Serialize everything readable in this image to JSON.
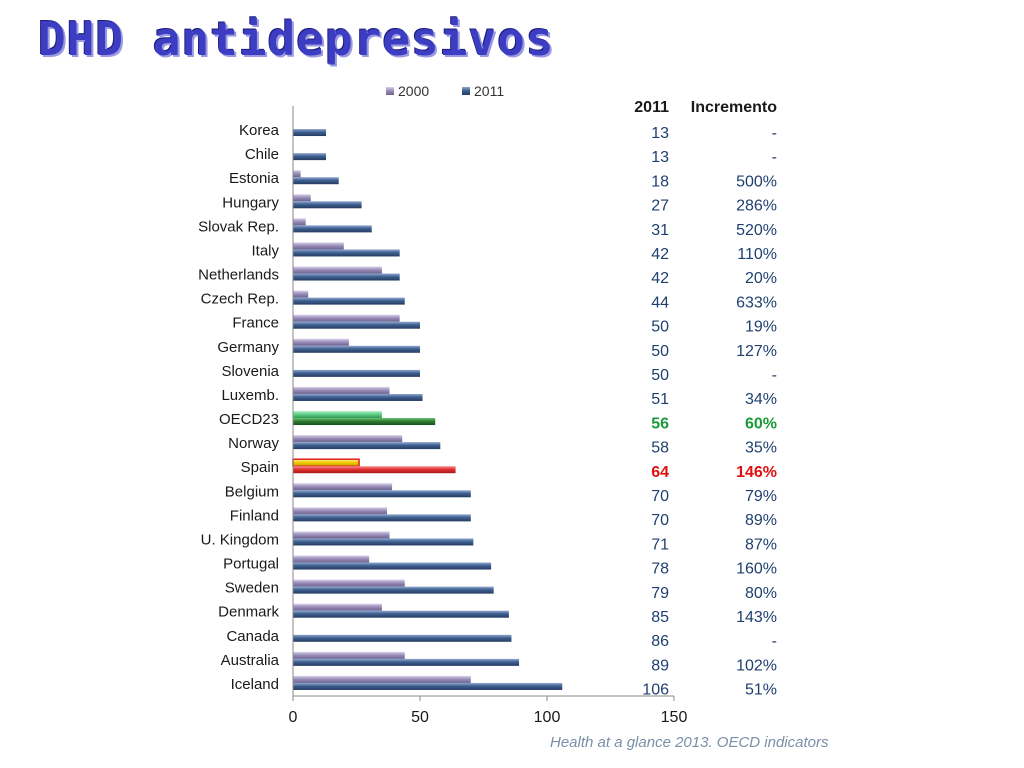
{
  "title": "DHD antidepresivos",
  "source": "Health at  a glance 2013. OECD indicators",
  "colors": {
    "title": "#3d3dc4",
    "bar_2000": "#9b8fb8",
    "bar_2011": "#3f5f8f",
    "oecd_2000": "#5fcf8a",
    "oecd_2011": "#2e7d32",
    "spain_2000": "#f0d000",
    "spain_2011": "#e03030",
    "table_text": "#1f3f6f",
    "oecd_text": "#1a9a3a",
    "spain_text": "#e01010"
  },
  "table": {
    "headers": [
      "2011",
      "Incremento"
    ],
    "rows": [
      {
        "value": "13",
        "incr": "-"
      },
      {
        "value": "13",
        "incr": "-"
      },
      {
        "value": "18",
        "incr": "500%"
      },
      {
        "value": "27",
        "incr": "286%"
      },
      {
        "value": "31",
        "incr": "520%"
      },
      {
        "value": "42",
        "incr": "110%"
      },
      {
        "value": "42",
        "incr": "20%"
      },
      {
        "value": "44",
        "incr": "633%"
      },
      {
        "value": "50",
        "incr": "19%"
      },
      {
        "value": "50",
        "incr": "127%"
      },
      {
        "value": "50",
        "incr": "-"
      },
      {
        "value": "51",
        "incr": "34%"
      },
      {
        "value": "56",
        "incr": "60%",
        "highlight": "oecd"
      },
      {
        "value": "58",
        "incr": "35%"
      },
      {
        "value": "64",
        "incr": "146%",
        "highlight": "spain"
      },
      {
        "value": "70",
        "incr": "79%"
      },
      {
        "value": "70",
        "incr": "89%"
      },
      {
        "value": "71",
        "incr": "87%"
      },
      {
        "value": "78",
        "incr": "160%"
      },
      {
        "value": "79",
        "incr": "80%"
      },
      {
        "value": "85",
        "incr": "143%"
      },
      {
        "value": "86",
        "incr": "-"
      },
      {
        "value": "89",
        "incr": "102%"
      },
      {
        "value": "106",
        "incr": "51%"
      }
    ]
  },
  "chart_data": {
    "type": "bar",
    "orientation": "horizontal",
    "categories": [
      "Korea",
      "Chile",
      "Estonia",
      "Hungary",
      "Slovak Rep.",
      "Italy",
      "Netherlands",
      "Czech Rep.",
      "France",
      "Germany",
      "Slovenia",
      "Luxemb.",
      "OECD23",
      "Norway",
      "Spain",
      "Belgium",
      "Finland",
      "U. Kingdom",
      "Portugal",
      "Sweden",
      "Denmark",
      "Canada",
      "Australia",
      "Iceland"
    ],
    "series": [
      {
        "name": "2000",
        "values": [
          null,
          null,
          3,
          7,
          5,
          20,
          35,
          6,
          42,
          22,
          null,
          38,
          35,
          43,
          26,
          39,
          37,
          38,
          30,
          44,
          35,
          null,
          44,
          70
        ]
      },
      {
        "name": "2011",
        "values": [
          13,
          13,
          18,
          27,
          31,
          42,
          42,
          44,
          50,
          50,
          50,
          51,
          56,
          58,
          64,
          70,
          70,
          71,
          78,
          79,
          85,
          86,
          89,
          106
        ]
      }
    ],
    "highlights": {
      "OECD23": "oecd",
      "Spain": "spain"
    },
    "xlim": [
      0,
      150
    ],
    "xticks": [
      0,
      50,
      100,
      150
    ],
    "legend": "top",
    "grid": false
  }
}
